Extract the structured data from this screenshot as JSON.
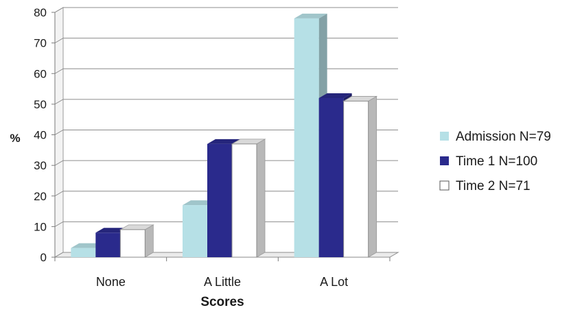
{
  "chart_data": {
    "type": "bar",
    "style": "3d-clustered-column",
    "categories": [
      "None",
      "A Little",
      "A Lot"
    ],
    "series": [
      {
        "name": "Admission N=79",
        "color": "#b6e0e6",
        "values": [
          3,
          17,
          78
        ]
      },
      {
        "name": "Time 1 N=100",
        "color": "#2a2a8c",
        "values": [
          8,
          37,
          52
        ]
      },
      {
        "name": "Time 2 N=71",
        "color": "#ffffff",
        "values": [
          9,
          37,
          51
        ]
      }
    ],
    "xlabel": "Scores",
    "ylabel": "%",
    "ylim": [
      0,
      80
    ],
    "yticks": [
      0,
      10,
      20,
      30,
      40,
      50,
      60,
      70,
      80
    ],
    "grid": true,
    "legend": "right"
  }
}
